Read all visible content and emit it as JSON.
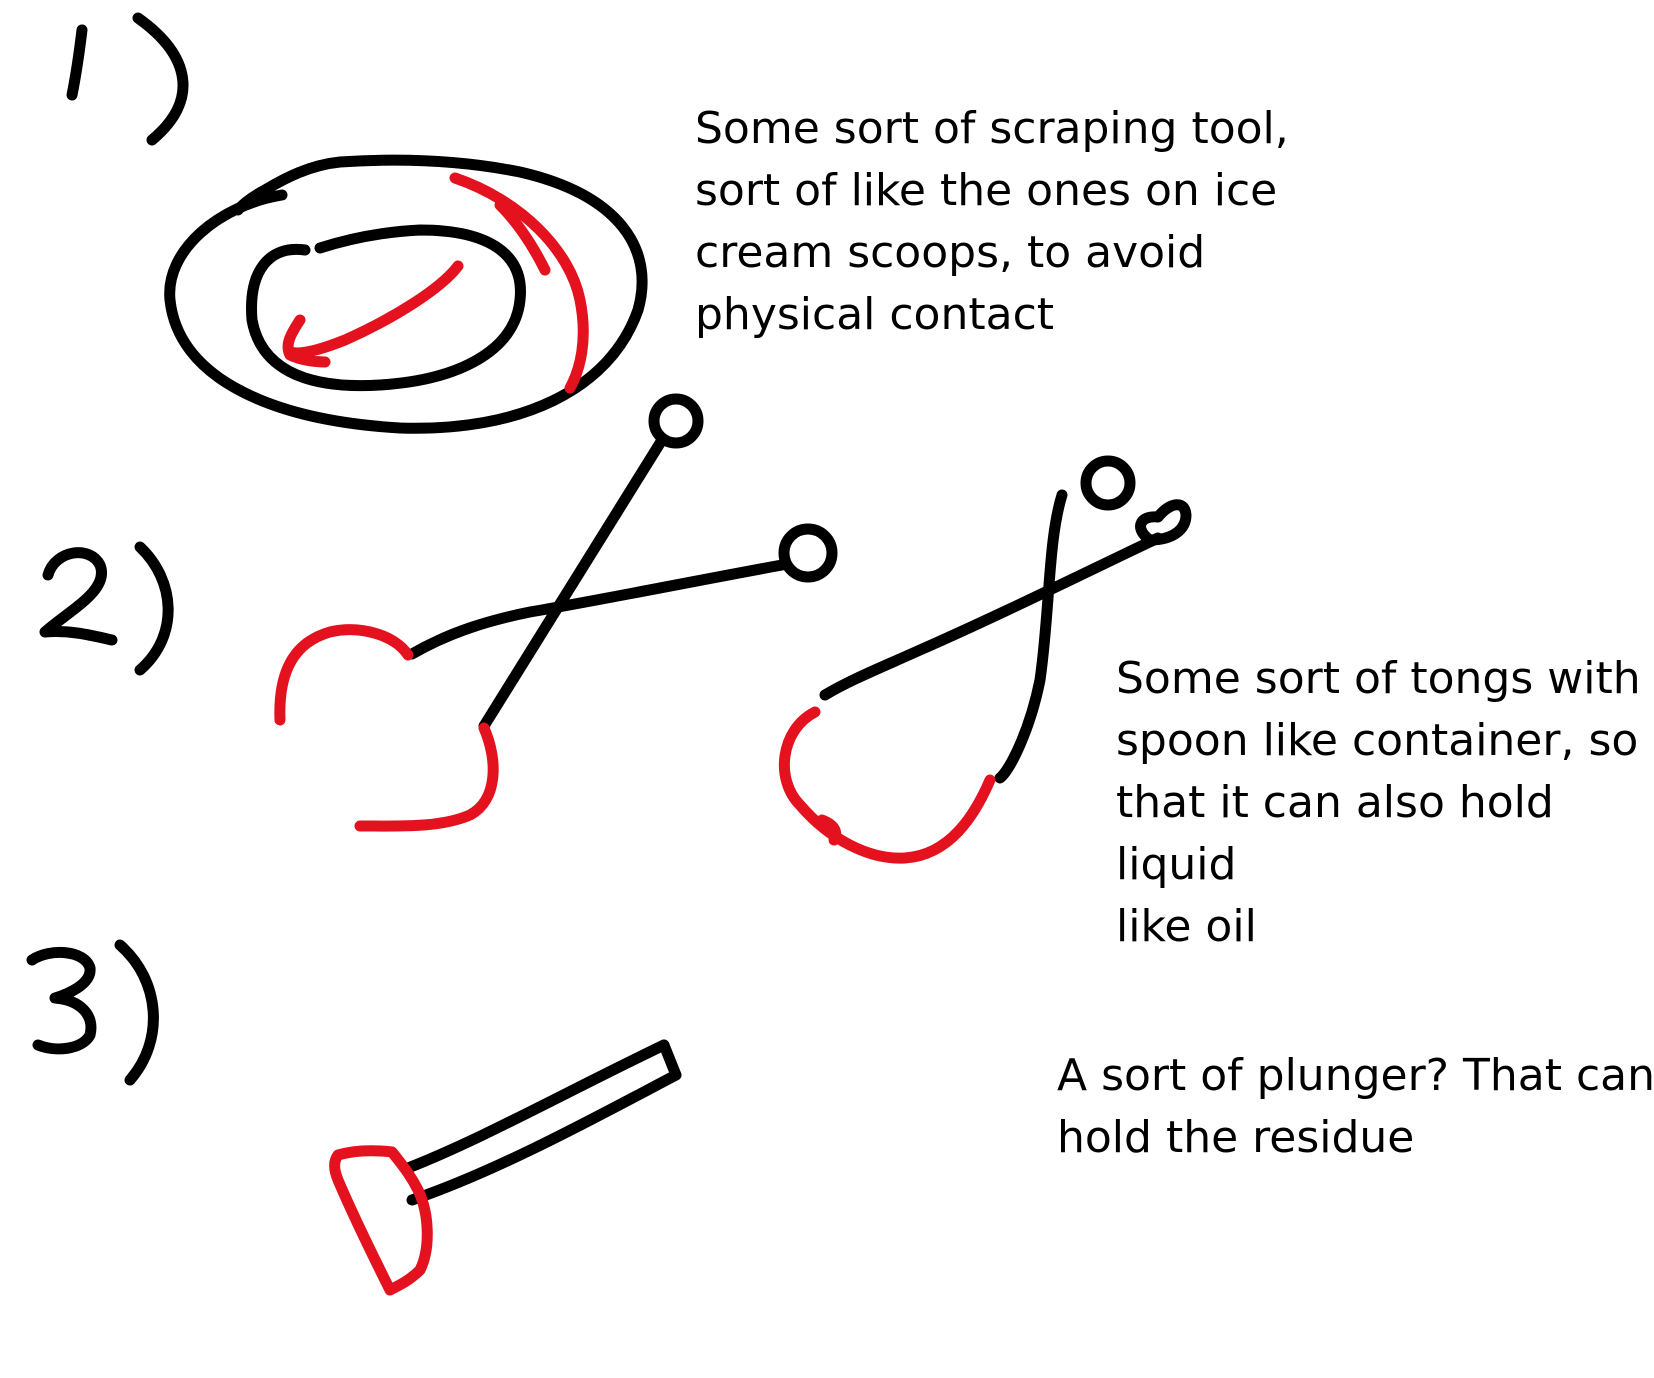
{
  "sketches": [
    {
      "label": "1)",
      "note": "Some sort of scraping tool,\nsort of like the ones on ice\ncream scoops, to avoid\nphysical contact"
    },
    {
      "label": "2)",
      "note": "Some sort of tongs with\nspoon like container, so\nthat it can also hold liquid\nlike oil"
    },
    {
      "label": "3)",
      "note": "A sort of plunger? That can\nhold the residue"
    }
  ],
  "colors": {
    "ink": "#000000",
    "highlight": "#e3121e"
  }
}
